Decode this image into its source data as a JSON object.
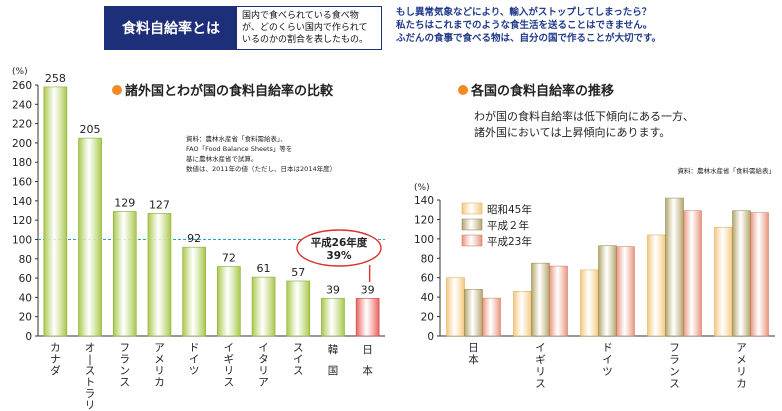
{
  "header": {
    "title": "食料自給率とは",
    "description_lines": [
      "国内で食べられている食べ物",
      "が、どのくらい国内で作られて",
      "いるのかの割合を表したもの。"
    ],
    "message_lines": [
      "もし異常気象などにより、輸入がストップしてしまったら？",
      "私たちはこれまでのような食生活を送ることはできません。",
      "ふだんの食事で食べる物は、自分の国で作ることが大切です。"
    ]
  },
  "colors": {
    "navy": "#1e2f7a",
    "bullet": "#f08a24",
    "green_bar": "#a8c84a",
    "red_bar": "#e8605a",
    "reference_line": "#2aa0c8",
    "s45": "#f5c77e",
    "h2": "#b3a56a",
    "h23": "#e8957c"
  },
  "chart_data": [
    {
      "type": "bar",
      "title": "諸外国とわが国の食料自給率の比較",
      "ylabel": "(%)",
      "ylim": [
        0,
        260
      ],
      "yticks": [
        0,
        20,
        40,
        60,
        80,
        100,
        120,
        140,
        160,
        180,
        200,
        220,
        240,
        260
      ],
      "reference_line": 100,
      "categories": [
        "カナダ",
        "オーストラリア",
        "フランス",
        "アメリカ",
        "ドイツ",
        "イギリス",
        "イタリア",
        "スイス",
        "韓国",
        "日本"
      ],
      "values": [
        258,
        205,
        129,
        127,
        92,
        72,
        61,
        57,
        39,
        39
      ],
      "highlight_index": 9,
      "source_lines": [
        "資料：農林水産省「食料需給表」、",
        "FAO「Food Balance Sheets」等を",
        "基に農林水産省で試算。",
        "数値は、2011年の値（ただし、日本は2014年度）"
      ],
      "callout": {
        "line1": "平成26年度",
        "line2": "39%"
      },
      "grid": false
    },
    {
      "type": "bar",
      "title": "各国の食料自給率の推移",
      "subtitle_lines": [
        "わが国の食料自給率は低下傾向にある一方、",
        "諸外国においては上昇傾向にあります。"
      ],
      "source": "資料：農林水産省「食料需給表」",
      "ylabel": "(%)",
      "ylim": [
        0,
        140
      ],
      "yticks": [
        0,
        20,
        40,
        60,
        80,
        100,
        120,
        140
      ],
      "categories": [
        "日本",
        "イギリス",
        "ドイツ",
        "フランス",
        "アメリカ"
      ],
      "series": [
        {
          "name": "昭和45年",
          "values": [
            60,
            46,
            68,
            104,
            112
          ]
        },
        {
          "name": "平成２年",
          "values": [
            48,
            75,
            93,
            142,
            129
          ]
        },
        {
          "name": "平成23年",
          "values": [
            39,
            72,
            92,
            129,
            127
          ]
        }
      ],
      "legend": "top-left",
      "grid": false
    }
  ]
}
